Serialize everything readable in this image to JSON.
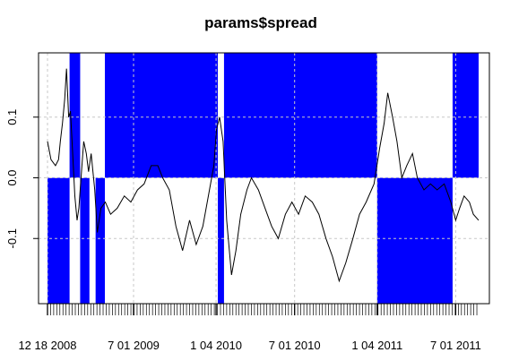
{
  "chart_data": {
    "type": "line",
    "title": "params$spread",
    "xlabel": "",
    "ylabel": "",
    "x_range": [
      "2008-12-18",
      "2011-08-22"
    ],
    "ylim": [
      -0.2,
      0.2
    ],
    "y_ticks": [
      {
        "value": -0.1,
        "label": "-0.1"
      },
      {
        "value": 0.0,
        "label": "0.0"
      },
      {
        "value": 0.1,
        "label": "0.1"
      }
    ],
    "x_ticks": [
      {
        "date": "2008-12-18",
        "label": "12 18 2008"
      },
      {
        "date": "2009-07-01",
        "label": "7 01 2009"
      },
      {
        "date": "2010-01-04",
        "label": "1 04 2010"
      },
      {
        "date": "2010-07-01",
        "label": "7 01 2010"
      },
      {
        "date": "2011-01-04",
        "label": "1 04 2011"
      },
      {
        "date": "2011-07-01",
        "label": "7 01 2011"
      }
    ],
    "grid": true,
    "grid_style": "dashed",
    "line_color": "#000000",
    "position_band_color": "#0000ff",
    "position_bands": [
      {
        "start": "2008-12-18",
        "end": "2009-02-06",
        "sign": -1
      },
      {
        "start": "2009-02-06",
        "end": "2009-03-02",
        "sign": 1
      },
      {
        "start": "2009-03-02",
        "end": "2009-03-23",
        "sign": -1
      },
      {
        "start": "2009-04-06",
        "end": "2009-04-27",
        "sign": -1
      },
      {
        "start": "2009-04-27",
        "end": "2010-01-08",
        "sign": 1
      },
      {
        "start": "2010-01-08",
        "end": "2010-01-22",
        "sign": -1
      },
      {
        "start": "2010-01-22",
        "end": "2011-01-04",
        "sign": 1
      },
      {
        "start": "2011-01-04",
        "end": "2011-06-24",
        "sign": -1
      },
      {
        "start": "2011-06-24",
        "end": "2011-08-22",
        "sign": 1
      }
    ],
    "series": [
      {
        "values": [
          [
            "2008-12-18",
            0.06
          ],
          [
            "2008-12-26",
            0.03
          ],
          [
            "2009-01-05",
            0.02
          ],
          [
            "2009-01-12",
            0.03
          ],
          [
            "2009-01-16",
            0.06
          ],
          [
            "2009-01-21",
            0.09
          ],
          [
            "2009-01-26",
            0.13
          ],
          [
            "2009-01-30",
            0.18
          ],
          [
            "2009-02-04",
            0.1
          ],
          [
            "2009-02-08",
            0.11
          ],
          [
            "2009-02-13",
            0.04
          ],
          [
            "2009-02-18",
            -0.03
          ],
          [
            "2009-02-23",
            -0.07
          ],
          [
            "2009-02-27",
            -0.05
          ],
          [
            "2009-03-05",
            0.01
          ],
          [
            "2009-03-10",
            0.06
          ],
          [
            "2009-03-16",
            0.04
          ],
          [
            "2009-03-21",
            0.01
          ],
          [
            "2009-03-27",
            0.04
          ],
          [
            "2009-04-04",
            -0.02
          ],
          [
            "2009-04-10",
            -0.09
          ],
          [
            "2009-04-18",
            -0.05
          ],
          [
            "2009-04-28",
            -0.04
          ],
          [
            "2009-05-10",
            -0.06
          ],
          [
            "2009-05-25",
            -0.05
          ],
          [
            "2009-06-10",
            -0.03
          ],
          [
            "2009-06-25",
            -0.04
          ],
          [
            "2009-07-10",
            -0.02
          ],
          [
            "2009-07-25",
            -0.01
          ],
          [
            "2009-08-10",
            0.02
          ],
          [
            "2009-08-25",
            0.02
          ],
          [
            "2009-09-05",
            0.0
          ],
          [
            "2009-09-20",
            -0.02
          ],
          [
            "2009-10-05",
            -0.08
          ],
          [
            "2009-10-20",
            -0.12
          ],
          [
            "2009-11-05",
            -0.07
          ],
          [
            "2009-11-20",
            -0.11
          ],
          [
            "2009-12-05",
            -0.08
          ],
          [
            "2009-12-20",
            -0.02
          ],
          [
            "2009-12-30",
            0.02
          ],
          [
            "2010-01-05",
            0.08
          ],
          [
            "2010-01-12",
            0.1
          ],
          [
            "2010-01-20",
            0.06
          ],
          [
            "2010-01-28",
            -0.07
          ],
          [
            "2010-02-08",
            -0.16
          ],
          [
            "2010-02-18",
            -0.12
          ],
          [
            "2010-03-01",
            -0.06
          ],
          [
            "2010-03-15",
            -0.02
          ],
          [
            "2010-03-25",
            0.0
          ],
          [
            "2010-04-10",
            -0.02
          ],
          [
            "2010-04-25",
            -0.05
          ],
          [
            "2010-05-10",
            -0.08
          ],
          [
            "2010-05-25",
            -0.1
          ],
          [
            "2010-06-10",
            -0.06
          ],
          [
            "2010-06-25",
            -0.04
          ],
          [
            "2010-07-10",
            -0.06
          ],
          [
            "2010-07-25",
            -0.03
          ],
          [
            "2010-08-10",
            -0.04
          ],
          [
            "2010-08-25",
            -0.06
          ],
          [
            "2010-09-10",
            -0.1
          ],
          [
            "2010-09-25",
            -0.13
          ],
          [
            "2010-10-10",
            -0.17
          ],
          [
            "2010-10-25",
            -0.14
          ],
          [
            "2010-11-10",
            -0.1
          ],
          [
            "2010-11-25",
            -0.06
          ],
          [
            "2010-12-10",
            -0.04
          ],
          [
            "2010-12-28",
            -0.01
          ],
          [
            "2011-01-10",
            0.05
          ],
          [
            "2011-01-20",
            0.09
          ],
          [
            "2011-01-28",
            0.14
          ],
          [
            "2011-02-08",
            0.1
          ],
          [
            "2011-02-18",
            0.06
          ],
          [
            "2011-03-01",
            0.0
          ],
          [
            "2011-03-12",
            0.02
          ],
          [
            "2011-03-25",
            0.04
          ],
          [
            "2011-04-05",
            0.0
          ],
          [
            "2011-04-20",
            -0.02
          ],
          [
            "2011-05-05",
            -0.01
          ],
          [
            "2011-05-20",
            -0.02
          ],
          [
            "2011-06-05",
            -0.01
          ],
          [
            "2011-06-20",
            -0.04
          ],
          [
            "2011-07-01",
            -0.07
          ],
          [
            "2011-07-10",
            -0.05
          ],
          [
            "2011-07-20",
            -0.03
          ],
          [
            "2011-08-01",
            -0.04
          ],
          [
            "2011-08-10",
            -0.06
          ],
          [
            "2011-08-22",
            -0.07
          ]
        ]
      }
    ]
  }
}
